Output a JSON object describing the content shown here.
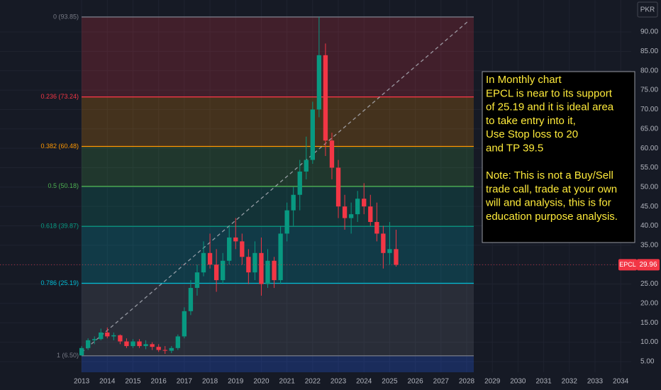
{
  "chart_data": {
    "type": "candlestick",
    "currency": "PKR",
    "xlim": [
      2009.82,
      2034.41
    ],
    "xticks": [
      2013,
      2014,
      2015,
      2016,
      2017,
      2018,
      2019,
      2020,
      2021,
      2022,
      2023,
      2024,
      2025,
      2026,
      2027,
      2028,
      2029,
      2030,
      2031,
      2032,
      2033,
      2034
    ],
    "ylim": [
      2.25,
      98.23
    ],
    "yticks": [
      {
        "value": 5,
        "label": "5.00"
      },
      {
        "value": 10,
        "label": "10.00"
      },
      {
        "value": 15,
        "label": "15.00"
      },
      {
        "value": 20,
        "label": "20.00"
      },
      {
        "value": 25,
        "label": "25.00"
      },
      {
        "value": 30,
        "label": "30.00"
      },
      {
        "value": 35,
        "label": "35.00"
      },
      {
        "value": 40,
        "label": "40.00"
      },
      {
        "value": 45,
        "label": "45.00"
      },
      {
        "value": 50,
        "label": "50.00"
      },
      {
        "value": 55,
        "label": "55.00"
      },
      {
        "value": 60,
        "label": "60.00"
      },
      {
        "value": 65,
        "label": "65.00"
      },
      {
        "value": 70,
        "label": "70.00"
      },
      {
        "value": 75,
        "label": "75.00"
      },
      {
        "value": 80,
        "label": "80.00"
      },
      {
        "value": 85,
        "label": "85.00"
      },
      {
        "value": 90,
        "label": "90.00"
      }
    ],
    "grid": true,
    "up_color": "#089981",
    "down_color": "#f23645",
    "x": [
      2013.0,
      2013.25,
      2013.5,
      2013.75,
      2014.0,
      2014.25,
      2014.5,
      2014.75,
      2015.0,
      2015.25,
      2015.5,
      2015.75,
      2016.0,
      2016.25,
      2016.5,
      2016.75,
      2017.0,
      2017.25,
      2017.5,
      2017.75,
      2018.0,
      2018.25,
      2018.5,
      2018.75,
      2019.0,
      2019.25,
      2019.5,
      2019.75,
      2020.0,
      2020.25,
      2020.5,
      2020.75,
      2021.0,
      2021.25,
      2021.5,
      2021.75,
      2022.0,
      2022.25,
      2022.5,
      2022.75,
      2023.0,
      2023.25,
      2023.5,
      2023.75,
      2024.0,
      2024.25,
      2024.5,
      2024.75,
      2025.0,
      2025.25
    ],
    "open": [
      6.6,
      8.5,
      10.5,
      10.8,
      12.5,
      11.5,
      11.8,
      10.2,
      9,
      10.2,
      9,
      9.5,
      8.8,
      8,
      7.8,
      8.5,
      11.5,
      18,
      24,
      28,
      33,
      30,
      26,
      31,
      37,
      36,
      32,
      28,
      33,
      25,
      31,
      26,
      38,
      44,
      48,
      54,
      57,
      70,
      84,
      62,
      55,
      45,
      42,
      43,
      47,
      45,
      41,
      38,
      33,
      34
    ],
    "high": [
      9,
      11,
      11.5,
      13.5,
      13.8,
      12.5,
      12,
      11,
      10.8,
      10.8,
      10.5,
      10,
      9.5,
      9,
      9,
      12,
      19,
      26,
      30,
      36,
      38,
      34,
      33,
      40,
      42,
      38,
      34,
      36,
      37,
      34,
      32,
      40,
      46,
      50,
      57,
      63,
      72,
      93.85,
      87,
      64,
      57,
      48,
      46,
      49,
      51,
      48,
      46,
      40,
      41,
      39
    ],
    "low": [
      6.5,
      8,
      9.5,
      10.5,
      11,
      10.5,
      9.5,
      8.5,
      8.5,
      8.5,
      8.2,
      8,
      7.5,
      7,
      7.2,
      8,
      11,
      17,
      22,
      27,
      29,
      23,
      25,
      30,
      34,
      30,
      25,
      26,
      22,
      24,
      24,
      25,
      36,
      40,
      44,
      52,
      56,
      68,
      58,
      52,
      42,
      39,
      38,
      41,
      43,
      40,
      36,
      29,
      30,
      29.5
    ],
    "close": [
      8.5,
      10.5,
      10.8,
      12.5,
      11.5,
      11.8,
      10.2,
      9,
      10.2,
      9,
      9.5,
      8.8,
      8,
      7.8,
      8.5,
      11.5,
      18,
      24,
      28,
      33,
      30,
      26,
      31,
      37,
      36,
      32,
      28,
      33,
      25,
      31,
      26,
      38,
      44,
      48,
      54,
      57,
      70,
      84,
      62,
      55,
      45,
      42,
      43,
      47,
      45,
      41,
      38,
      33,
      34,
      29.96
    ],
    "fib_levels": [
      {
        "label": "0 (93.85)",
        "value": 93.85,
        "color": "#787b86"
      },
      {
        "label": "0.236 (73.24)",
        "value": 73.24,
        "color": "#f23645"
      },
      {
        "label": "0.382 (60.48)",
        "value": 60.48,
        "color": "#ff9800"
      },
      {
        "label": "0.5 (50.18)",
        "value": 50.18,
        "color": "#4caf50"
      },
      {
        "label": "0.618 (39.87)",
        "value": 39.87,
        "color": "#089981"
      },
      {
        "label": "0.786 (25.19)",
        "value": 25.19,
        "color": "#00bcd4"
      },
      {
        "label": "1 (6.50)",
        "value": 6.5,
        "color": "#787b86"
      }
    ],
    "last_price": {
      "name": "EPCL",
      "value": 29.96,
      "color": "#f23645"
    },
    "annotation": [
      [
        "In Monthly chart",
        "EPCL is near to its support",
        "of 25.19 and it is ideal area",
        "to take entry into it,",
        "Use Stop loss to 20",
        "and TP 39.5"
      ],
      [
        "Note: This is not a Buy/Sell",
        "trade call, trade at your own",
        "will and analysis, this is for",
        "education purpose analysis."
      ]
    ]
  }
}
